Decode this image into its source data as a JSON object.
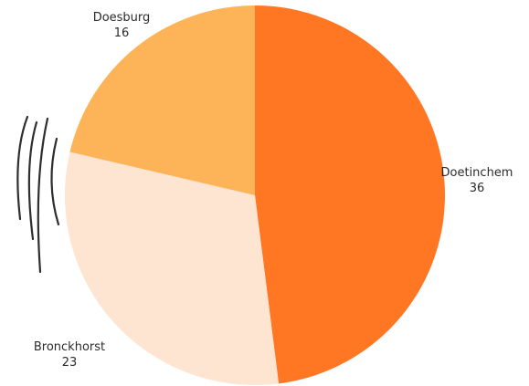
{
  "chart_data": {
    "type": "pie",
    "title": "",
    "slices": [
      {
        "label": "Doetinchem",
        "value": 36,
        "color": "#ff7722"
      },
      {
        "label": "Bronckhorst",
        "value": 23,
        "color": "#fde5d2"
      },
      {
        "label": "Doesburg",
        "value": 16,
        "color": "#fdb458"
      }
    ],
    "start_angle_deg": 0,
    "direction": "clockwise",
    "legend": "none",
    "labels": "outside"
  },
  "colors": {
    "background": "#ffffff",
    "label_text": "#2b2b2b",
    "decor_lines": "#2e2e2e"
  }
}
